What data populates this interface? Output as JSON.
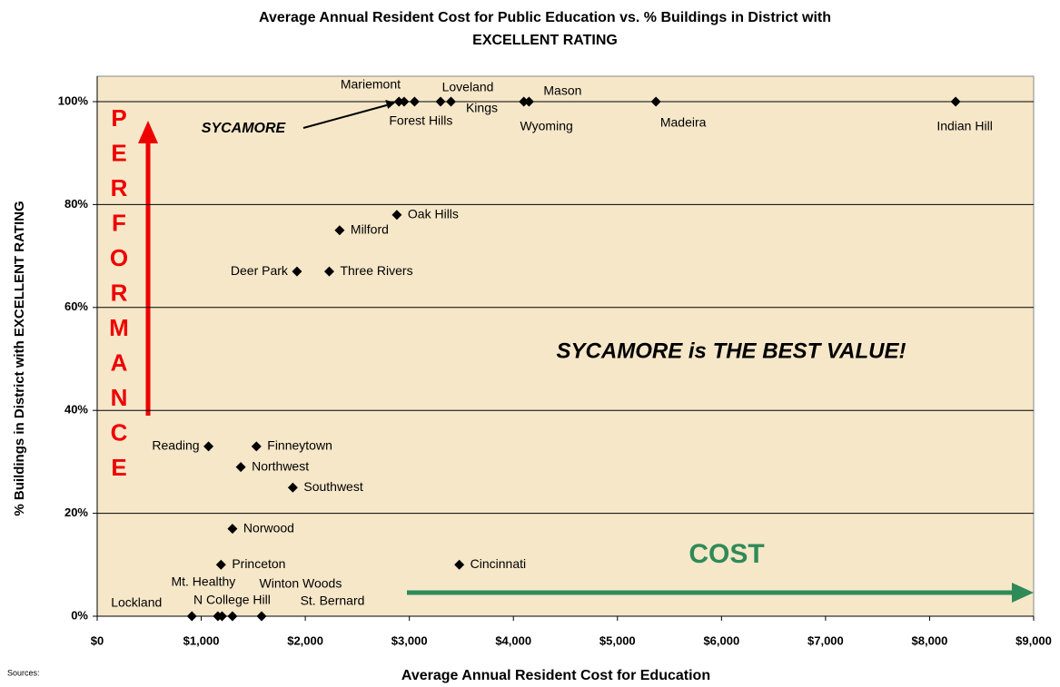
{
  "chart_data": {
    "type": "scatter",
    "title": "Average Annual Resident Cost for Public Education vs. % Buildings in District with",
    "subtitle": "EXCELLENT RATING",
    "x_label": "Average Annual Resident Cost for Education",
    "y_label": "% Buildings in District with EXCELLENT RATING",
    "names": [
      "SYCAMORE",
      "Mariemont",
      "Forest Hills",
      "Loveland",
      "Kings",
      "Wyoming",
      "Mason",
      "Madeira",
      "Indian Hill",
      "Oak Hills",
      "Milford",
      "Deer Park",
      "Three Rivers",
      "Reading",
      "Finneytown",
      "Northwest",
      "Southwest",
      "Norwood",
      "Princeton",
      "Cincinnati",
      "Lockland",
      "Mt. Healthy",
      "N College Hill",
      "Winton Woods",
      "St. Bernard"
    ],
    "x": [
      2900,
      2950,
      3050,
      3300,
      3400,
      4100,
      4150,
      5370,
      8250,
      2880,
      2330,
      1920,
      2230,
      1070,
      1530,
      1380,
      1880,
      1300,
      1190,
      3480,
      910,
      1160,
      1200,
      1300,
      1580
    ],
    "values": [
      100,
      100,
      100,
      100,
      100,
      100,
      100,
      100,
      100,
      78,
      75,
      67,
      67,
      33,
      33,
      29,
      25,
      17,
      10,
      10,
      0,
      0,
      0,
      0,
      0
    ],
    "color": "#000000",
    "xlim": [
      0,
      9000
    ],
    "xticks": [
      {
        "value": 0,
        "label": "$0"
      },
      {
        "value": 1000,
        "label": "$1,000"
      },
      {
        "value": 2000,
        "label": "$2,000"
      },
      {
        "value": 3000,
        "label": "$3,000"
      },
      {
        "value": 4000,
        "label": "$4,000"
      },
      {
        "value": 5000,
        "label": "$5,000"
      },
      {
        "value": 6000,
        "label": "$6,000"
      },
      {
        "value": 7000,
        "label": "$7,000"
      },
      {
        "value": 8000,
        "label": "$8,000"
      },
      {
        "value": 9000,
        "label": "$9,000"
      }
    ],
    "ylim": [
      0,
      100
    ],
    "yticks": [
      {
        "value": 0,
        "label": "0%"
      },
      {
        "value": 20,
        "label": "20%"
      },
      {
        "value": 40,
        "label": "40%"
      },
      {
        "value": 60,
        "label": "60%"
      },
      {
        "value": 80,
        "label": "80%"
      },
      {
        "value": 100,
        "label": "100%"
      }
    ],
    "grid": true,
    "annotations": [
      "SYCAMORE is THE BEST VALUE!",
      "COST",
      "P",
      "E",
      "R",
      "F",
      "O",
      "R",
      "M",
      "A",
      "N",
      "C",
      "E"
    ],
    "sources": "Sources:"
  }
}
